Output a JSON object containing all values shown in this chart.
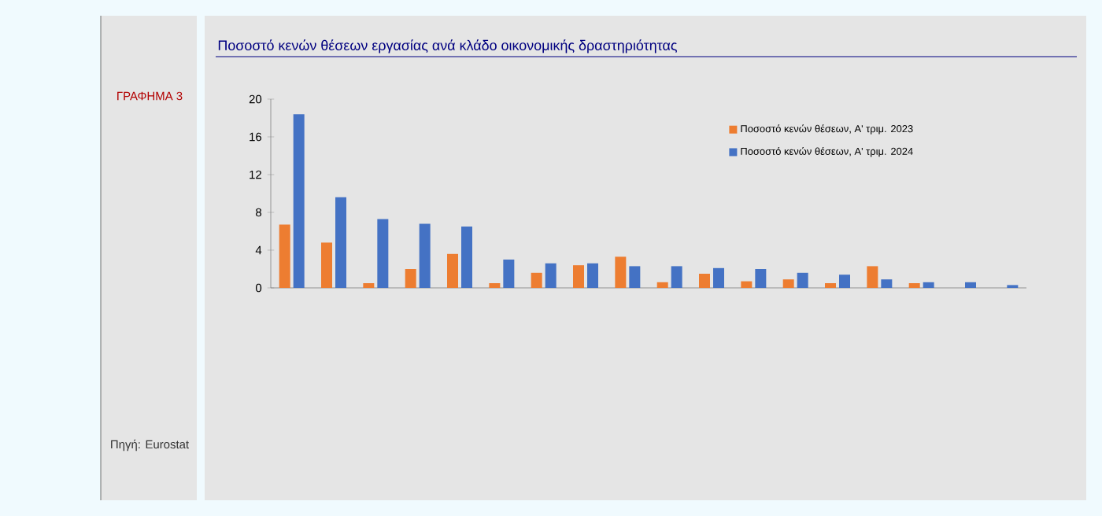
{
  "chart_data": {
    "type": "bar",
    "title": "Ποσοστό κενών θέσεων εργασίας ανά κλάδο οικονομικής δραστηριότητας",
    "categories": [
      null,
      null,
      null,
      null,
      null,
      null,
      null,
      null,
      null,
      null,
      null,
      null,
      null,
      null,
      null,
      null,
      null,
      null
    ],
    "series": [
      {
        "name": "Ποσοστό κενών θέσεων, Α' τριμ. 2023",
        "color": "#ed7d31",
        "values": [
          6.7,
          4.8,
          0.5,
          2.0,
          3.6,
          0.5,
          1.6,
          2.4,
          3.3,
          0.6,
          1.5,
          0.7,
          0.9,
          0.5,
          2.3,
          0.5,
          null,
          null
        ]
      },
      {
        "name": "Ποσοστό κενών θέσεων, Α' τριμ. 2024",
        "color": "#4472c4",
        "values": [
          18.4,
          9.6,
          7.3,
          6.8,
          6.5,
          3.0,
          2.6,
          2.6,
          2.3,
          2.3,
          2.1,
          2.0,
          1.6,
          1.4,
          0.9,
          0.6,
          0.6,
          0.3
        ]
      }
    ],
    "ylim": [
      0,
      20
    ],
    "yticks": [
      0,
      4,
      8,
      12,
      16,
      20
    ],
    "legend": "top right",
    "annotations": [
      "ΓΡΑΦΗΜΑ 3",
      "Πηγή: Eurostat"
    ]
  }
}
